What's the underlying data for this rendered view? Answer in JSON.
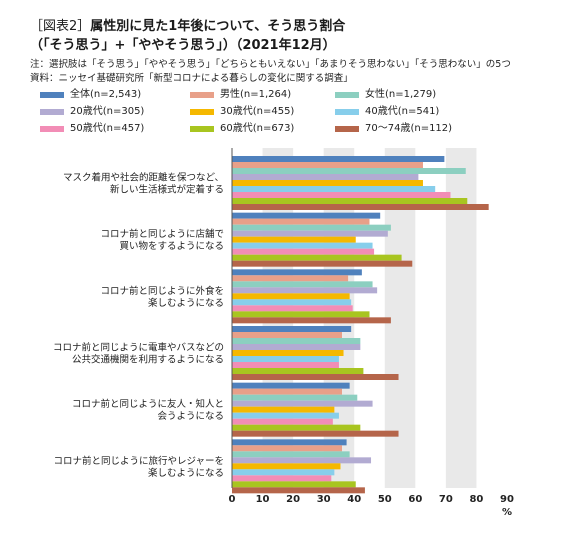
{
  "header": {
    "figure_label": "［図表2］",
    "title_main": "属性別に見た1年後について、そう思う割合",
    "title_sub": "（「そう思う」+「ややそう思う」）（2021年12月）",
    "note": "注：選択肢は「そう思う」「ややそう思う」「どちらともいえない」「あまりそう思わない」「そう思わない」の5つ",
    "source": "資料：ニッセイ基礎研究所「新型コロナによる暮らしの変化に関する調査」"
  },
  "chart_data": {
    "type": "bar",
    "orientation": "horizontal",
    "categories": [
      [
        "マスク着用や社会的距離を保つなど、",
        "新しい生活様式が定着する"
      ],
      [
        "コロナ前と同じように店舗で",
        "買い物をするようになる"
      ],
      [
        "コロナ前と同じように外食を",
        "楽しむようになる"
      ],
      [
        "コロナ前と同じように電車やバスなどの",
        "公共交通機関を利用するようになる"
      ],
      [
        "コロナ前と同じように友人・知人と",
        "会うようになる"
      ],
      [
        "コロナ前と同じように旅行やレジャーを",
        "楽しむようになる"
      ]
    ],
    "series": [
      {
        "name": "全体(n=2,543)",
        "color": "#4F81BD",
        "values": [
          69.5,
          48.5,
          42.5,
          39,
          38.5,
          37.5
        ]
      },
      {
        "name": "男性(n=1,264)",
        "color": "#E8A089",
        "values": [
          62.5,
          45,
          38,
          36,
          36,
          36
        ]
      },
      {
        "name": "女性(n=1,279)",
        "color": "#8CCFC0",
        "values": [
          76.5,
          52,
          46,
          42,
          41,
          38.5
        ]
      },
      {
        "name": "20歳代(n=305)",
        "color": "#B2ABD2",
        "values": [
          61,
          51,
          47.5,
          42,
          46,
          45.5
        ]
      },
      {
        "name": "30歳代(n=455)",
        "color": "#F5B800",
        "values": [
          62.5,
          40.5,
          38.5,
          36.5,
          33.5,
          35.5
        ]
      },
      {
        "name": "40歳代(n=541)",
        "color": "#87CEEB",
        "values": [
          66.5,
          46,
          39,
          35,
          35,
          33.5
        ]
      },
      {
        "name": "50歳代(n=457)",
        "color": "#F28DB6",
        "values": [
          71.5,
          46.5,
          39.5,
          35,
          33,
          32.5
        ]
      },
      {
        "name": "60歳代(n=673)",
        "color": "#A8C520",
        "values": [
          77,
          55.5,
          45,
          43,
          42,
          40.5
        ]
      },
      {
        "name": "70～74歳(n=112)",
        "color": "#B5654A",
        "values": [
          84,
          59,
          52,
          54.5,
          54.5,
          43.5
        ]
      }
    ],
    "xlim": [
      0,
      90
    ],
    "xticks": [
      0,
      10,
      20,
      30,
      40,
      50,
      60,
      70,
      80,
      90
    ],
    "xunit": "%",
    "grid": true,
    "legend_placement": "top"
  }
}
